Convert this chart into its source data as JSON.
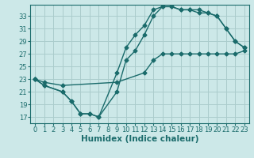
{
  "xlabel": "Humidex (Indice chaleur)",
  "bg_color": "#cce8e8",
  "grid_color": "#aacccc",
  "line_color": "#1a6b6b",
  "marker": "D",
  "markersize": 2.5,
  "linewidth": 1.0,
  "xlim": [
    -0.5,
    23.5
  ],
  "ylim": [
    16.0,
    34.8
  ],
  "xticks": [
    0,
    1,
    2,
    3,
    4,
    5,
    6,
    7,
    8,
    9,
    10,
    11,
    12,
    13,
    14,
    15,
    16,
    17,
    18,
    19,
    20,
    21,
    22,
    23
  ],
  "yticks": [
    17,
    19,
    21,
    23,
    25,
    27,
    29,
    31,
    33
  ],
  "series1_x": [
    0,
    1,
    3,
    4,
    5,
    6,
    7,
    9,
    10,
    11,
    12,
    13,
    14,
    15,
    16,
    17,
    18,
    19,
    20,
    21,
    22,
    23
  ],
  "series1_y": [
    23,
    22,
    21,
    19.5,
    17.5,
    17.5,
    17,
    24,
    28,
    30,
    31.5,
    34,
    34.5,
    34.5,
    34,
    34,
    34,
    33.5,
    33,
    31,
    29,
    28
  ],
  "series2_x": [
    0,
    1,
    3,
    4,
    5,
    6,
    7,
    9,
    10,
    11,
    12,
    13,
    14,
    15,
    16,
    17,
    18,
    19,
    20,
    21,
    22,
    23
  ],
  "series2_y": [
    23,
    22,
    21,
    19.5,
    17.5,
    17.5,
    17,
    21,
    26,
    27.5,
    30,
    33,
    34.5,
    34.5,
    34,
    34,
    33.5,
    33.5,
    33,
    31,
    29,
    28
  ],
  "series3_x": [
    0,
    1,
    3,
    9,
    12,
    13,
    14,
    15,
    16,
    17,
    18,
    19,
    20,
    21,
    22,
    23
  ],
  "series3_y": [
    23,
    22.5,
    22,
    22.5,
    24,
    26,
    27,
    27,
    27,
    27,
    27,
    27,
    27,
    27,
    27,
    27.5
  ],
  "tick_fontsize": 6,
  "xlabel_fontsize": 7.5
}
